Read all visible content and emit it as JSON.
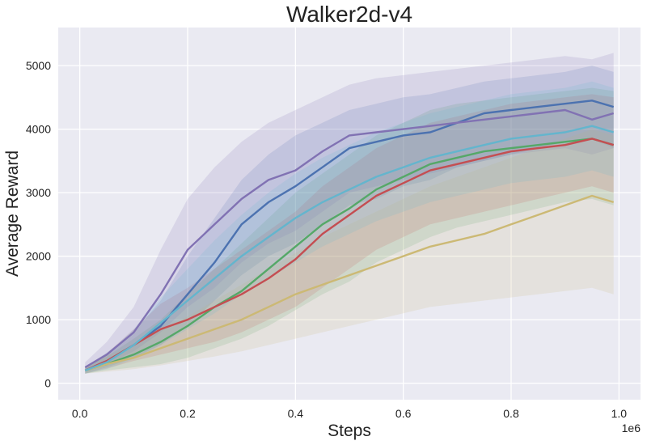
{
  "chart_data": {
    "type": "line",
    "title": "Walker2d-v4",
    "xlabel": "Steps",
    "ylabel": "Average Reward",
    "x_offset_label": "1e6",
    "xlim": [
      -0.04,
      1.04
    ],
    "ylim": [
      -260,
      5600
    ],
    "x_ticks": [
      0.0,
      0.2,
      0.4,
      0.6,
      0.8,
      1.0
    ],
    "x_tick_labels": [
      "0.0",
      "0.2",
      "0.4",
      "0.6",
      "0.8",
      "1.0"
    ],
    "y_ticks": [
      0,
      1000,
      2000,
      3000,
      4000,
      5000
    ],
    "y_tick_labels": [
      "0",
      "1000",
      "2000",
      "3000",
      "4000",
      "5000"
    ],
    "grid": true,
    "style": {
      "background": "#EAEAF2",
      "grid_color": "#FFFFFF"
    },
    "series": [
      {
        "color": "#4C72B0",
        "x": [
          0.01,
          0.05,
          0.1,
          0.15,
          0.2,
          0.25,
          0.3,
          0.35,
          0.4,
          0.45,
          0.5,
          0.55,
          0.6,
          0.65,
          0.7,
          0.75,
          0.8,
          0.85,
          0.9,
          0.95,
          0.99
        ],
        "mean": [
          200,
          350,
          600,
          900,
          1400,
          1900,
          2500,
          2850,
          3100,
          3400,
          3700,
          3800,
          3900,
          3950,
          4100,
          4250,
          4300,
          4350,
          4400,
          4450,
          4350
        ],
        "lower": [
          150,
          250,
          400,
          600,
          900,
          1300,
          1700,
          2000,
          2200,
          2500,
          2800,
          2900,
          3100,
          3200,
          3400,
          3500,
          3600,
          3700,
          3800,
          3850,
          3700
        ],
        "upper": [
          260,
          480,
          800,
          1300,
          2000,
          2600,
          3200,
          3600,
          3900,
          4100,
          4300,
          4400,
          4500,
          4550,
          4650,
          4750,
          4800,
          4850,
          4900,
          5000,
          4900
        ]
      },
      {
        "color": "#55A868",
        "x": [
          0.01,
          0.05,
          0.1,
          0.15,
          0.2,
          0.25,
          0.3,
          0.35,
          0.4,
          0.45,
          0.5,
          0.55,
          0.6,
          0.65,
          0.7,
          0.75,
          0.8,
          0.85,
          0.9,
          0.95,
          0.99
        ],
        "mean": [
          200,
          300,
          450,
          650,
          900,
          1200,
          1450,
          1800,
          2150,
          2500,
          2750,
          3050,
          3250,
          3450,
          3550,
          3650,
          3700,
          3750,
          3800,
          3850,
          3750
        ],
        "lower": [
          150,
          200,
          250,
          300,
          400,
          550,
          700,
          900,
          1150,
          1400,
          1600,
          1900,
          2100,
          2300,
          2450,
          2550,
          2650,
          2750,
          2850,
          2900,
          2800
        ],
        "upper": [
          260,
          420,
          700,
          1000,
          1400,
          1800,
          2200,
          2600,
          3000,
          3300,
          3600,
          3900,
          4100,
          4300,
          4400,
          4450,
          4500,
          4550,
          4600,
          4650,
          4600
        ]
      },
      {
        "color": "#C44E52",
        "x": [
          0.01,
          0.05,
          0.1,
          0.15,
          0.2,
          0.25,
          0.3,
          0.35,
          0.4,
          0.45,
          0.5,
          0.55,
          0.6,
          0.65,
          0.7,
          0.75,
          0.8,
          0.85,
          0.9,
          0.95,
          0.99
        ],
        "mean": [
          200,
          350,
          600,
          850,
          1000,
          1200,
          1400,
          1650,
          1950,
          2350,
          2650,
          2950,
          3150,
          3350,
          3450,
          3550,
          3650,
          3700,
          3750,
          3850,
          3750
        ],
        "lower": [
          150,
          230,
          350,
          450,
          550,
          650,
          800,
          1000,
          1200,
          1500,
          1800,
          2100,
          2300,
          2500,
          2600,
          2700,
          2800,
          2900,
          3000,
          3100,
          3000
        ],
        "upper": [
          260,
          470,
          850,
          1250,
          1500,
          1800,
          2100,
          2400,
          2700,
          3100,
          3400,
          3700,
          3900,
          4100,
          4200,
          4300,
          4400,
          4450,
          4500,
          4550,
          4500
        ]
      },
      {
        "color": "#8172B3",
        "x": [
          0.01,
          0.05,
          0.1,
          0.15,
          0.2,
          0.25,
          0.3,
          0.35,
          0.4,
          0.45,
          0.5,
          0.55,
          0.6,
          0.65,
          0.7,
          0.75,
          0.8,
          0.85,
          0.9,
          0.95,
          0.99
        ],
        "mean": [
          250,
          450,
          800,
          1400,
          2100,
          2500,
          2900,
          3200,
          3350,
          3650,
          3900,
          3950,
          4000,
          4050,
          4100,
          4150,
          4200,
          4250,
          4300,
          4150,
          4250
        ],
        "lower": [
          180,
          300,
          500,
          800,
          1200,
          1500,
          1900,
          2200,
          2400,
          2700,
          3000,
          3100,
          3200,
          3300,
          3400,
          3500,
          3600,
          3650,
          3700,
          3600,
          3700
        ],
        "upper": [
          330,
          650,
          1200,
          2100,
          2900,
          3400,
          3800,
          4100,
          4300,
          4500,
          4700,
          4800,
          4850,
          4900,
          4950,
          5000,
          5050,
          5100,
          5150,
          5100,
          5200
        ]
      },
      {
        "color": "#CCB974",
        "x": [
          0.01,
          0.05,
          0.1,
          0.15,
          0.2,
          0.25,
          0.3,
          0.35,
          0.4,
          0.45,
          0.5,
          0.55,
          0.6,
          0.65,
          0.7,
          0.75,
          0.8,
          0.85,
          0.9,
          0.95,
          0.99
        ],
        "mean": [
          200,
          300,
          400,
          550,
          700,
          850,
          1000,
          1200,
          1400,
          1550,
          1700,
          1850,
          2000,
          2150,
          2250,
          2350,
          2500,
          2650,
          2800,
          2950,
          2850
        ],
        "lower": [
          150,
          180,
          220,
          280,
          350,
          420,
          500,
          600,
          700,
          800,
          900,
          1000,
          1100,
          1200,
          1250,
          1300,
          1350,
          1400,
          1450,
          1500,
          1400
        ],
        "upper": [
          250,
          430,
          600,
          850,
          1050,
          1300,
          1550,
          1800,
          2050,
          2300,
          2500,
          2700,
          2900,
          3100,
          3250,
          3400,
          3550,
          3700,
          3850,
          4000,
          3900
        ]
      },
      {
        "color": "#64B5CD",
        "x": [
          0.01,
          0.05,
          0.1,
          0.15,
          0.2,
          0.25,
          0.3,
          0.35,
          0.4,
          0.45,
          0.5,
          0.55,
          0.6,
          0.65,
          0.7,
          0.75,
          0.8,
          0.85,
          0.9,
          0.95,
          0.99
        ],
        "mean": [
          200,
          330,
          600,
          950,
          1300,
          1650,
          2000,
          2300,
          2600,
          2850,
          3050,
          3250,
          3400,
          3550,
          3650,
          3750,
          3850,
          3900,
          3950,
          4050,
          3950
        ],
        "lower": [
          150,
          220,
          380,
          600,
          850,
          1100,
          1400,
          1650,
          1900,
          2150,
          2350,
          2550,
          2700,
          2850,
          2950,
          3050,
          3150,
          3200,
          3250,
          3350,
          3250
        ],
        "upper": [
          260,
          460,
          850,
          1350,
          1800,
          2250,
          2650,
          3000,
          3300,
          3550,
          3750,
          3950,
          4100,
          4250,
          4350,
          4450,
          4550,
          4600,
          4650,
          4750,
          4650
        ]
      }
    ]
  }
}
